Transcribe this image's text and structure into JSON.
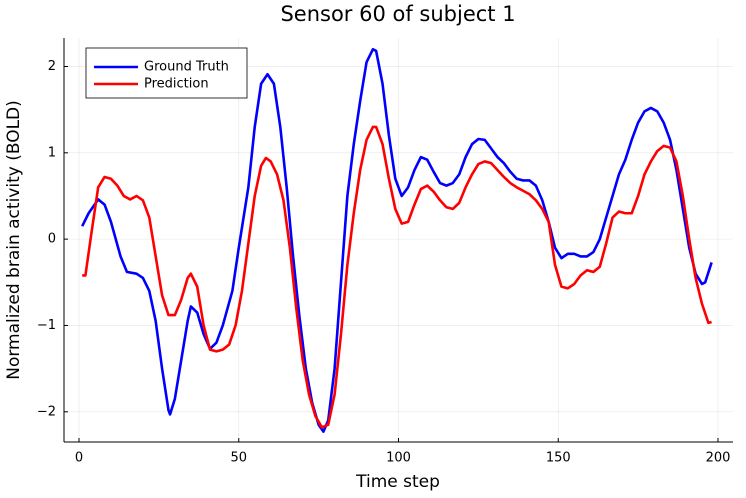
{
  "chart_data": {
    "type": "line",
    "title": "Sensor 60 of subject 1",
    "x_label": "Time step",
    "y_label": "Normalized brain activity (BOLD)",
    "xlim": [
      -4.7,
      204.7
    ],
    "ylim": [
      -2.35,
      2.33
    ],
    "xticks": [
      0,
      50,
      100,
      150,
      200
    ],
    "yticks": [
      {
        "value": -2,
        "label": "−2"
      },
      {
        "value": -1,
        "label": "−1"
      },
      0,
      1,
      2
    ],
    "grid": true,
    "legend": "top-left",
    "series": [
      {
        "name": "Ground Truth",
        "color": "#0000ff",
        "x": [
          1,
          3,
          6,
          8,
          10,
          13,
          15,
          18,
          20,
          22,
          24,
          26,
          28,
          28.5,
          30,
          32,
          34,
          35,
          37,
          39,
          41,
          43,
          45,
          48,
          50,
          53,
          55,
          57,
          59,
          61,
          63,
          65,
          67,
          69,
          71,
          73,
          75,
          76.5,
          78,
          80,
          82,
          84,
          86,
          88,
          90,
          92,
          93,
          95,
          97,
          99,
          101,
          103,
          105,
          107,
          109,
          111,
          113,
          115,
          117,
          119,
          121,
          123,
          125,
          127,
          129,
          131,
          133,
          135,
          137,
          139,
          141,
          143,
          145,
          147,
          149,
          151,
          153,
          155,
          157,
          159,
          161,
          163,
          165,
          167,
          169,
          171,
          173,
          175,
          177,
          179,
          181,
          183,
          185,
          187,
          189,
          191,
          193,
          195,
          196,
          198
        ],
        "values": [
          0.15,
          0.3,
          0.46,
          0.4,
          0.2,
          -0.2,
          -0.38,
          -0.4,
          -0.45,
          -0.6,
          -0.95,
          -1.5,
          -1.98,
          -2.03,
          -1.85,
          -1.4,
          -0.95,
          -0.78,
          -0.85,
          -1.1,
          -1.27,
          -1.2,
          -1.0,
          -0.6,
          -0.1,
          0.6,
          1.3,
          1.8,
          1.91,
          1.8,
          1.3,
          0.6,
          -0.2,
          -0.9,
          -1.5,
          -1.9,
          -2.15,
          -2.23,
          -2.1,
          -1.5,
          -0.5,
          0.5,
          1.1,
          1.6,
          2.05,
          2.2,
          2.18,
          1.8,
          1.2,
          0.7,
          0.5,
          0.6,
          0.8,
          0.95,
          0.92,
          0.78,
          0.65,
          0.62,
          0.65,
          0.75,
          0.95,
          1.1,
          1.16,
          1.15,
          1.05,
          0.95,
          0.88,
          0.78,
          0.7,
          0.68,
          0.68,
          0.62,
          0.45,
          0.2,
          -0.1,
          -0.22,
          -0.17,
          -0.17,
          -0.2,
          -0.2,
          -0.15,
          0.0,
          0.25,
          0.5,
          0.75,
          0.92,
          1.15,
          1.35,
          1.48,
          1.52,
          1.48,
          1.35,
          1.15,
          0.8,
          0.35,
          -0.1,
          -0.4,
          -0.52,
          -0.5,
          -0.27
        ]
      },
      {
        "name": "Prediction",
        "color": "#ff0000",
        "x": [
          1,
          2,
          4,
          6,
          8,
          10,
          12,
          14,
          16,
          18,
          20,
          22,
          24,
          26,
          28,
          30,
          32,
          34,
          35,
          37,
          39,
          41,
          43,
          45,
          47,
          49,
          51,
          53,
          55,
          57,
          58.5,
          60,
          62,
          64,
          66,
          68,
          70,
          72,
          74,
          76,
          78,
          80,
          82,
          84,
          86,
          88,
          90,
          92,
          93,
          95,
          97,
          99,
          101,
          103,
          105,
          107,
          109,
          111,
          113,
          115,
          117,
          119,
          121,
          123,
          125,
          127,
          129,
          131,
          133,
          135,
          137,
          139,
          141,
          143,
          145,
          147,
          149,
          151,
          153,
          155,
          157,
          159,
          161,
          163,
          165,
          167,
          169,
          171,
          173,
          175,
          177,
          179,
          181,
          183,
          185,
          187,
          189,
          191,
          193,
          195,
          197,
          198
        ],
        "values": [
          -0.42,
          -0.42,
          0.1,
          0.6,
          0.72,
          0.7,
          0.62,
          0.5,
          0.46,
          0.5,
          0.45,
          0.25,
          -0.2,
          -0.65,
          -0.88,
          -0.88,
          -0.7,
          -0.45,
          -0.4,
          -0.55,
          -1.0,
          -1.28,
          -1.3,
          -1.28,
          -1.22,
          -1.0,
          -0.6,
          -0.05,
          0.5,
          0.85,
          0.94,
          0.9,
          0.75,
          0.45,
          -0.1,
          -0.8,
          -1.4,
          -1.8,
          -2.05,
          -2.18,
          -2.15,
          -1.8,
          -1.1,
          -0.3,
          0.3,
          0.8,
          1.15,
          1.3,
          1.3,
          1.1,
          0.7,
          0.35,
          0.18,
          0.2,
          0.4,
          0.58,
          0.62,
          0.55,
          0.45,
          0.37,
          0.35,
          0.42,
          0.6,
          0.75,
          0.87,
          0.9,
          0.88,
          0.8,
          0.72,
          0.65,
          0.6,
          0.56,
          0.52,
          0.45,
          0.35,
          0.2,
          -0.3,
          -0.55,
          -0.57,
          -0.52,
          -0.42,
          -0.36,
          -0.38,
          -0.32,
          -0.05,
          0.25,
          0.32,
          0.3,
          0.3,
          0.5,
          0.75,
          0.9,
          1.02,
          1.08,
          1.06,
          0.9,
          0.5,
          0.0,
          -0.45,
          -0.75,
          -0.97,
          -0.96
        ]
      }
    ]
  }
}
